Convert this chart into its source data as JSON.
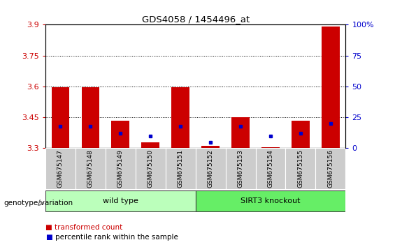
{
  "title": "GDS4058 / 1454496_at",
  "samples": [
    "GSM675147",
    "GSM675148",
    "GSM675149",
    "GSM675150",
    "GSM675151",
    "GSM675152",
    "GSM675153",
    "GSM675154",
    "GSM675155",
    "GSM675156"
  ],
  "transformed_count": [
    3.595,
    3.595,
    3.435,
    3.33,
    3.595,
    3.31,
    3.45,
    3.305,
    3.435,
    3.89
  ],
  "percentile_rank": [
    18,
    18,
    12,
    10,
    18,
    5,
    18,
    10,
    12,
    20
  ],
  "groups": [
    {
      "label": "wild type",
      "start": 0,
      "end": 4,
      "color": "#bbffbb"
    },
    {
      "label": "SIRT3 knockout",
      "start": 5,
      "end": 9,
      "color": "#66ee66"
    }
  ],
  "ymin": 3.3,
  "ymax": 3.9,
  "yticks": [
    3.3,
    3.45,
    3.6,
    3.75,
    3.9
  ],
  "ylabel_color": "#cc0000",
  "right_yticks": [
    0,
    25,
    50,
    75,
    100
  ],
  "right_ylabel_color": "#0000cc",
  "bar_color": "#cc0000",
  "dot_color": "#0000cc",
  "grid_color": "#000000",
  "background_color": "#ffffff",
  "tick_area_color": "#cccccc",
  "legend_items": [
    "transformed count",
    "percentile rank within the sample"
  ],
  "legend_colors": [
    "#cc0000",
    "#0000cc"
  ],
  "genotype_label": "genotype/variation",
  "arrow_color": "#777777"
}
